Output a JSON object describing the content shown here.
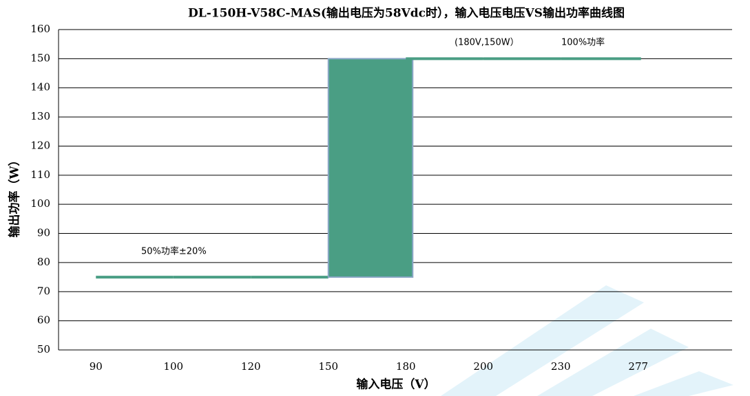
{
  "chart_data": {
    "type": "line",
    "title": "DL-150H-V58C-MAS(输出电压为58Vdc时），输入电压电压VS输出功率曲线图",
    "x_label": "输入电压（V）",
    "y_label": "输出功率（W）",
    "categories": [
      "90",
      "100",
      "120",
      "150",
      "180",
      "200",
      "230",
      "277"
    ],
    "series": [
      {
        "color": "#4a9e84",
        "values": [
          75,
          75,
          75,
          75,
          150,
          150,
          150,
          150
        ]
      }
    ],
    "annotations": [
      "(180V,150W）",
      "100%功率",
      "50%功率±20%"
    ],
    "ylim": [
      50,
      160
    ],
    "yticks": [
      50,
      60,
      70,
      80,
      90,
      100,
      110,
      120,
      130,
      140,
      150,
      160
    ],
    "grid": true
  }
}
